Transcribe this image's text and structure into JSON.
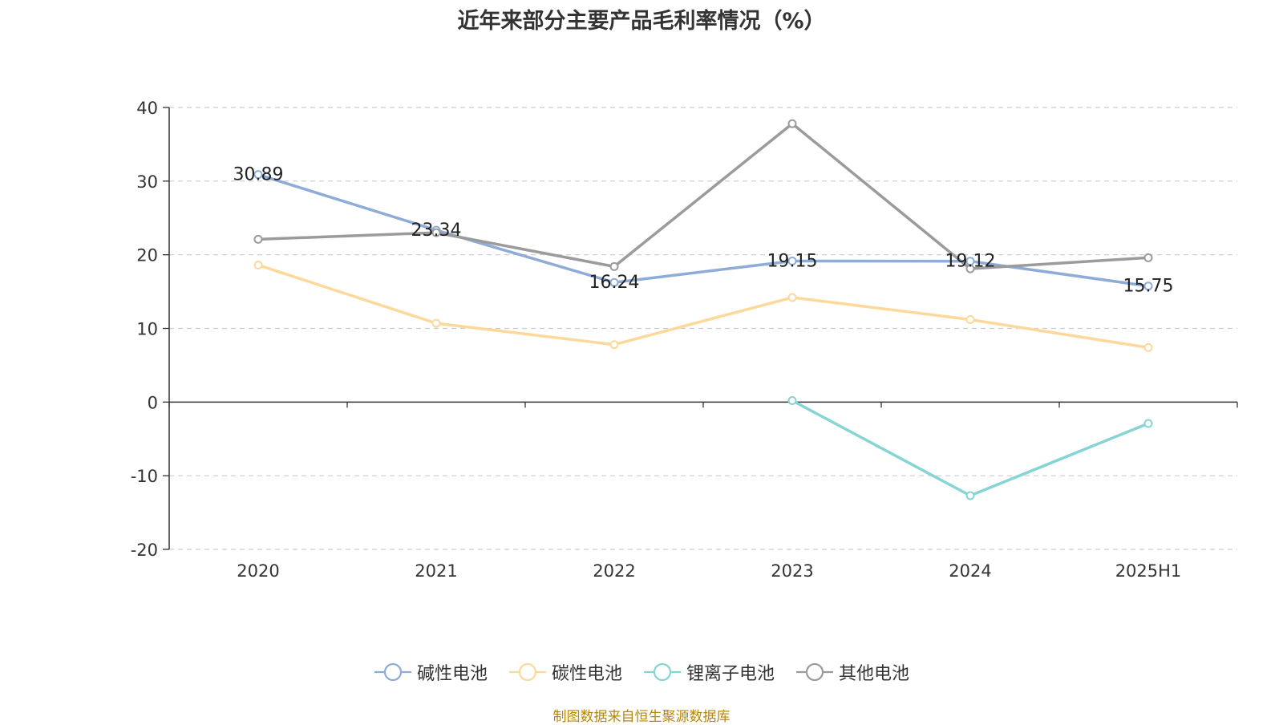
{
  "chart_data": {
    "type": "line",
    "title": "近年来部分主要产品毛利率情况（%）",
    "categories": [
      "2020",
      "2021",
      "2022",
      "2023",
      "2024",
      "2025H1"
    ],
    "ylim": [
      -20,
      40
    ],
    "yticks": [
      40,
      30,
      20,
      10,
      0,
      -10,
      -20
    ],
    "grid": true,
    "legend_position": "bottom",
    "series": [
      {
        "name": "碱性电池",
        "color": "#8eacd8",
        "values": [
          30.89,
          23.34,
          16.24,
          19.15,
          19.12,
          15.75
        ],
        "show_labels": true
      },
      {
        "name": "碳性电池",
        "color": "#fcd99b",
        "values": [
          18.6,
          10.7,
          7.8,
          14.2,
          11.2,
          7.4
        ],
        "show_labels": false
      },
      {
        "name": "锂离子电池",
        "color": "#86d4d4",
        "values": [
          null,
          null,
          null,
          0.2,
          -12.7,
          -2.9
        ],
        "show_labels": false
      },
      {
        "name": "其他电池",
        "color": "#9b9b9b",
        "values": [
          22.1,
          23.0,
          18.4,
          37.8,
          18.1,
          19.6
        ],
        "show_labels": false
      }
    ]
  },
  "source_note": "制图数据来自恒生聚源数据库"
}
